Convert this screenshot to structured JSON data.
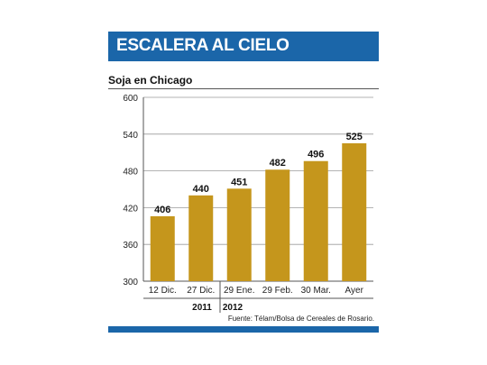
{
  "title": "ESCALERA AL CIELO",
  "subtitle": "Soja en Chicago",
  "source": "Fuente: Télam/Bolsa de Cereales de Rosario.",
  "colors": {
    "header": "#1b66a9",
    "bar": "#c5961c",
    "grid": "#9a9a9a"
  },
  "chart_data": {
    "type": "bar",
    "categories": [
      "12 Dic.",
      "27 Dic.",
      "29 Ene.",
      "29 Feb.",
      "30 Mar.",
      "Ayer"
    ],
    "values": [
      406,
      440,
      451,
      482,
      496,
      525
    ],
    "year_groups": [
      {
        "label": "2011",
        "count": 2
      },
      {
        "label": "2012",
        "count": 4
      }
    ],
    "yticks": [
      300,
      360,
      420,
      480,
      540,
      600
    ],
    "ylim": [
      300,
      600
    ],
    "grid": true,
    "data_labels": true
  }
}
